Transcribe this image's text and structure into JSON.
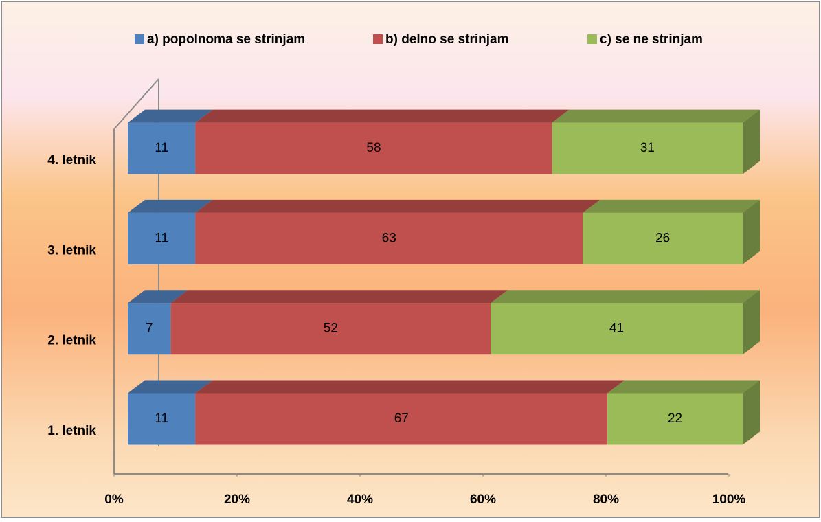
{
  "chart_data": {
    "type": "bar_stacked_horizontal",
    "categories": [
      "1. letnik",
      "2. letnik",
      "3. letnik",
      "4. letnik"
    ],
    "series": [
      {
        "name": "a) popolnoma se strinjam",
        "color": "#4f81bd",
        "values": [
          11,
          7,
          11,
          11
        ]
      },
      {
        "name": "b) delno se strinjam",
        "color": "#c0504d",
        "values": [
          67,
          52,
          63,
          58
        ]
      },
      {
        "name": "c) se ne strinjam",
        "color": "#9bbb59",
        "values": [
          22,
          41,
          26,
          31
        ]
      }
    ],
    "xlim": [
      0,
      100
    ],
    "xticks": [
      {
        "value": 0,
        "label": "0%"
      },
      {
        "value": 20,
        "label": "20%"
      },
      {
        "value": 40,
        "label": "40%"
      },
      {
        "value": 60,
        "label": "60%"
      },
      {
        "value": 80,
        "label": "80%"
      },
      {
        "value": 100,
        "label": "100%"
      }
    ],
    "legend": "top"
  }
}
